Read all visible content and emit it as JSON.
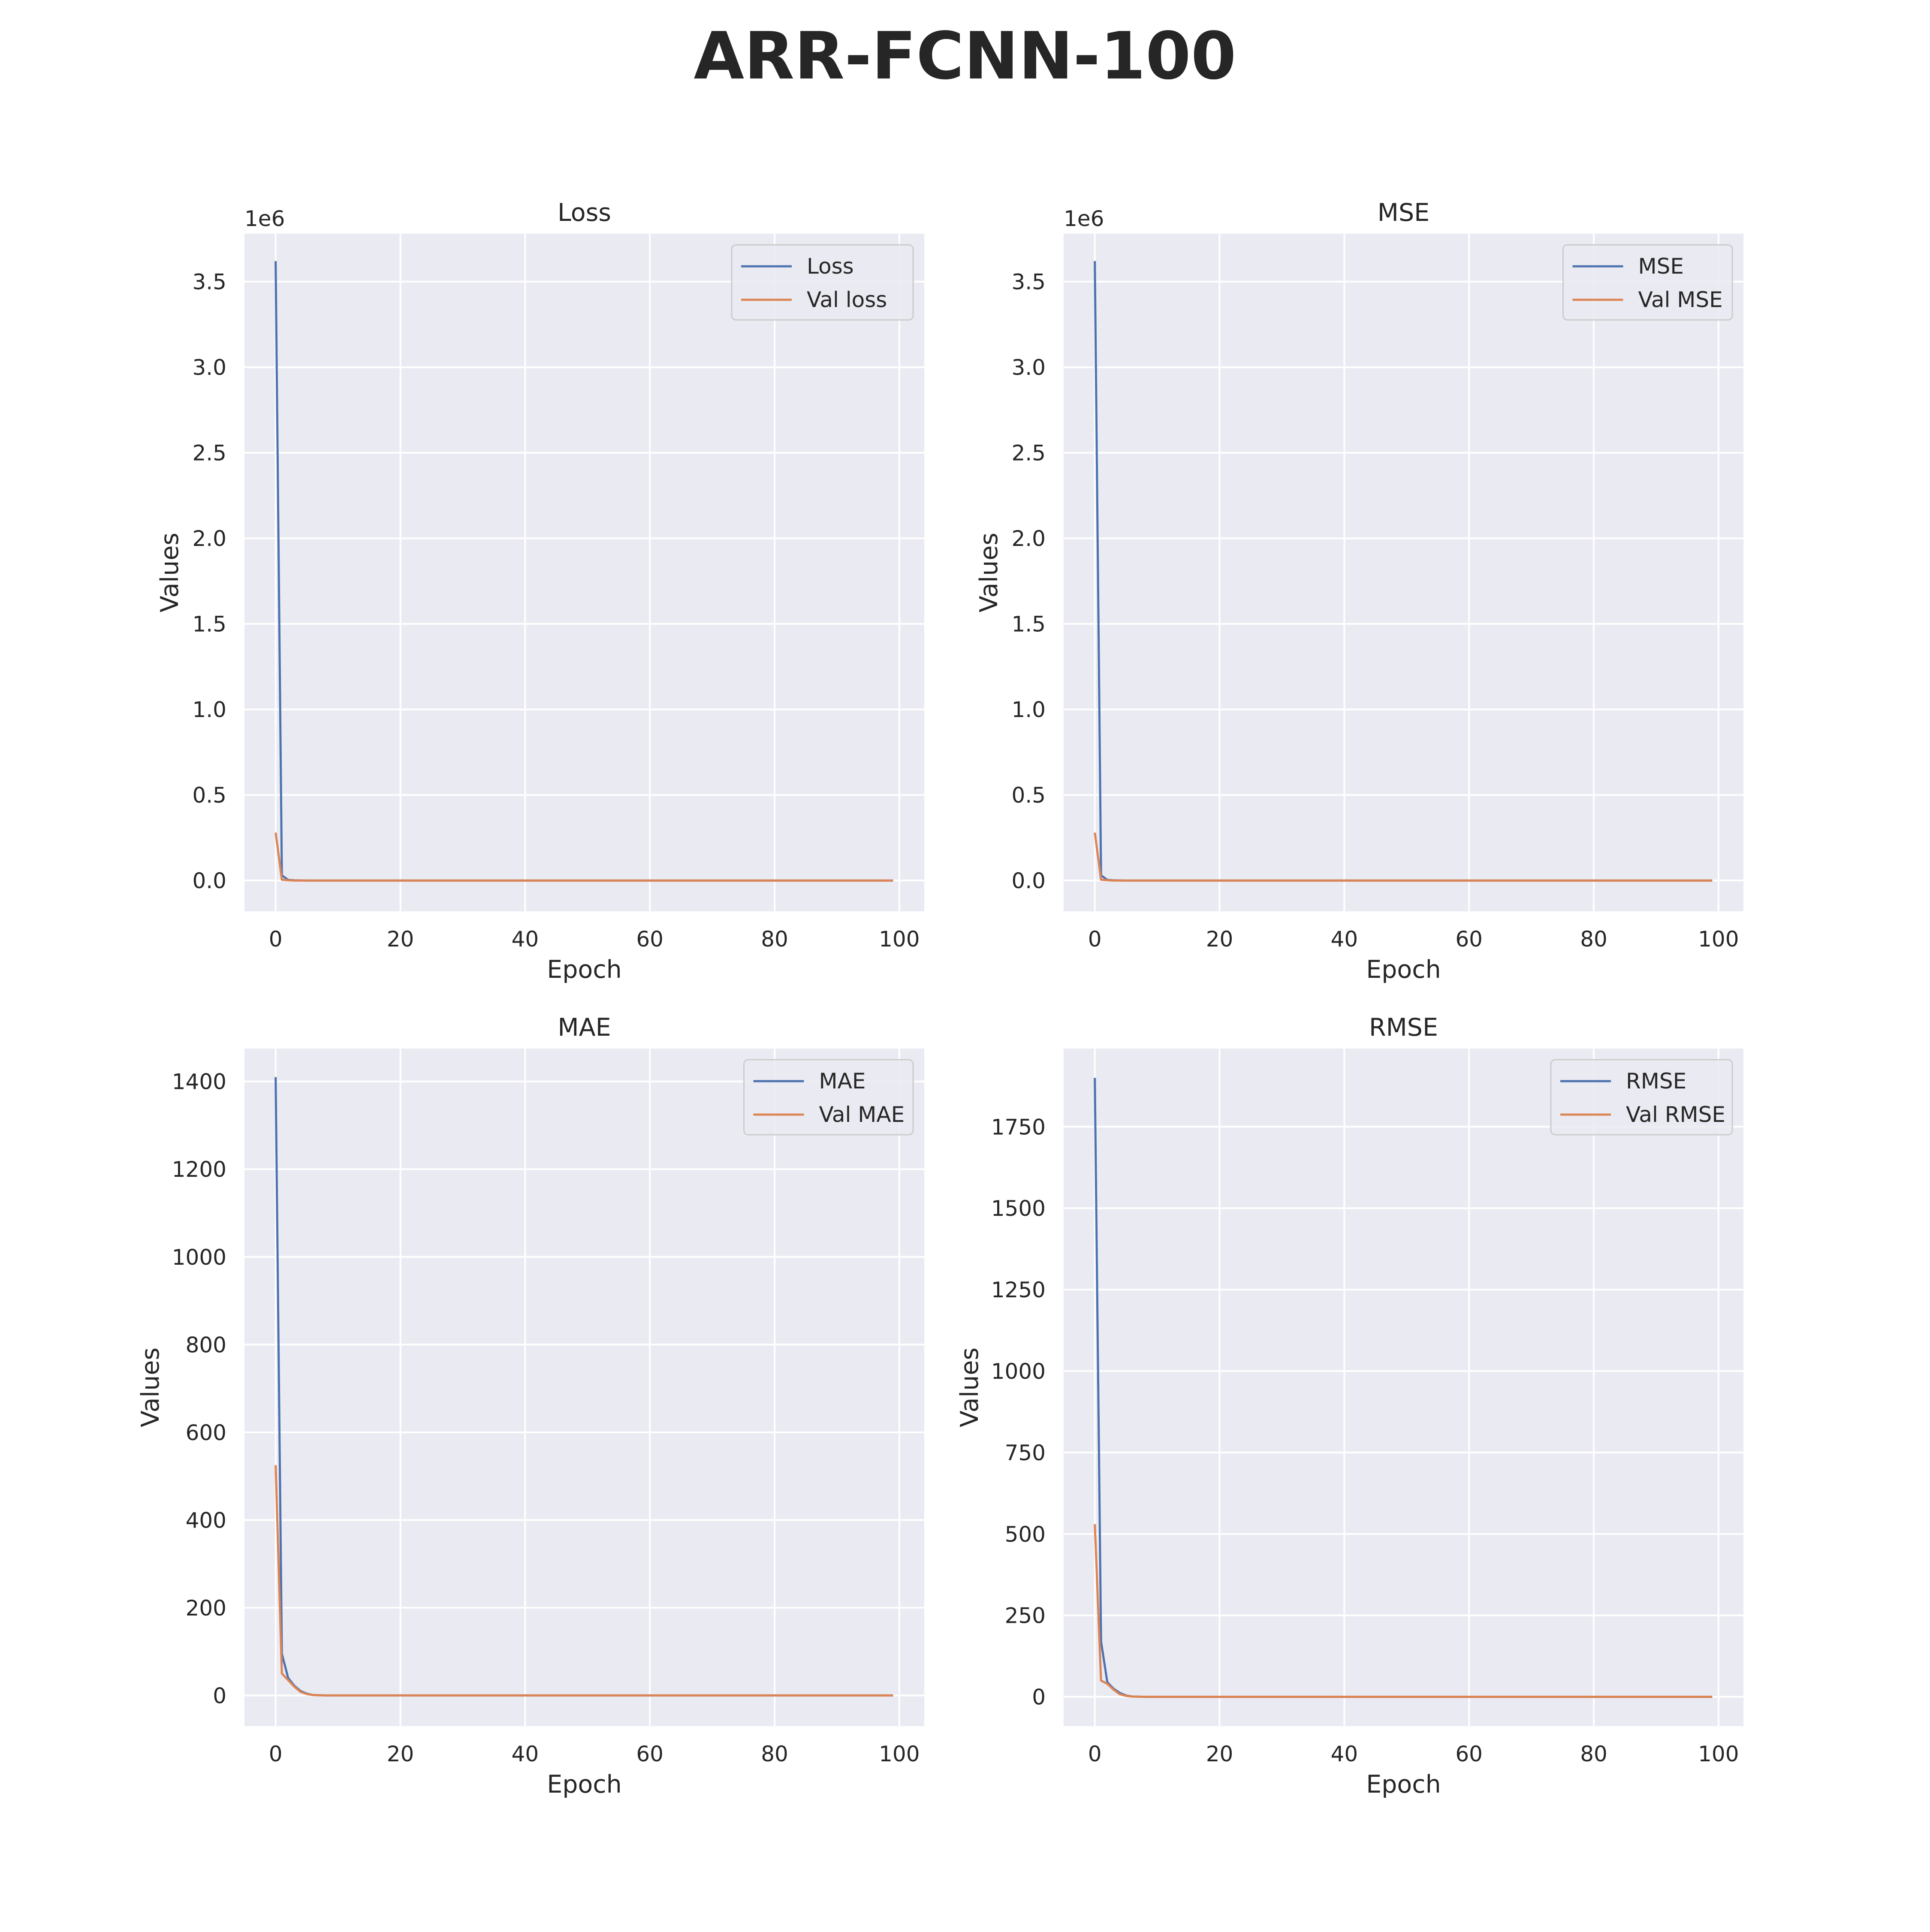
{
  "figure": {
    "title": "ARR-FCNN-100"
  },
  "colors": {
    "train": "#4C72B0",
    "val": "#DD8452",
    "axes_bg": "#EAEAF2",
    "grid": "#FFFFFF"
  },
  "chart_data": [
    {
      "type": "line",
      "title": "Loss",
      "xlabel": "Epoch",
      "ylabel": "Values",
      "offset_text": "1e6",
      "xlim": [
        -5,
        104
      ],
      "ylim": [
        -0.18,
        3.78
      ],
      "xticks": [
        0,
        20,
        40,
        60,
        80,
        100
      ],
      "xtick_labels": [
        "0",
        "20",
        "40",
        "60",
        "80",
        "100"
      ],
      "yticks": [
        0,
        0.5,
        1.0,
        1.5,
        2.0,
        2.5,
        3.0,
        3.5
      ],
      "ytick_labels": [
        "0.0",
        "0.5",
        "1.0",
        "1.5",
        "2.0",
        "2.5",
        "3.0",
        "3.5"
      ],
      "grid": true,
      "legend_position": "top-right",
      "series": [
        {
          "name": "Loss",
          "role": "train",
          "points": [
            [
              0,
              3.62
            ],
            [
              1,
              0.03
            ],
            [
              2,
              0.004
            ],
            [
              3,
              0.001
            ],
            [
              5,
              0.0
            ],
            [
              99,
              0.0
            ]
          ]
        },
        {
          "name": "Val loss",
          "role": "val",
          "points": [
            [
              0,
              0.28
            ],
            [
              1,
              0.005
            ],
            [
              2,
              0.002
            ],
            [
              3,
              0.0
            ],
            [
              99,
              0.0
            ]
          ]
        }
      ]
    },
    {
      "type": "line",
      "title": "MSE",
      "xlabel": "Epoch",
      "ylabel": "Values",
      "offset_text": "1e6",
      "xlim": [
        -5,
        104
      ],
      "ylim": [
        -0.18,
        3.78
      ],
      "xticks": [
        0,
        20,
        40,
        60,
        80,
        100
      ],
      "xtick_labels": [
        "0",
        "20",
        "40",
        "60",
        "80",
        "100"
      ],
      "yticks": [
        0,
        0.5,
        1.0,
        1.5,
        2.0,
        2.5,
        3.0,
        3.5
      ],
      "ytick_labels": [
        "0.0",
        "0.5",
        "1.0",
        "1.5",
        "2.0",
        "2.5",
        "3.0",
        "3.5"
      ],
      "grid": true,
      "legend_position": "top-right",
      "series": [
        {
          "name": "MSE",
          "role": "train",
          "points": [
            [
              0,
              3.62
            ],
            [
              1,
              0.03
            ],
            [
              2,
              0.004
            ],
            [
              3,
              0.001
            ],
            [
              5,
              0.0
            ],
            [
              99,
              0.0
            ]
          ]
        },
        {
          "name": "Val MSE",
          "role": "val",
          "points": [
            [
              0,
              0.28
            ],
            [
              1,
              0.005
            ],
            [
              2,
              0.002
            ],
            [
              3,
              0.0
            ],
            [
              99,
              0.0
            ]
          ]
        }
      ]
    },
    {
      "type": "line",
      "title": "MAE",
      "xlabel": "Epoch",
      "ylabel": "Values",
      "offset_text": "",
      "xlim": [
        -5,
        104
      ],
      "ylim": [
        -70,
        1475
      ],
      "xticks": [
        0,
        20,
        40,
        60,
        80,
        100
      ],
      "xtick_labels": [
        "0",
        "20",
        "40",
        "60",
        "80",
        "100"
      ],
      "yticks": [
        0,
        200,
        400,
        600,
        800,
        1000,
        1200,
        1400
      ],
      "ytick_labels": [
        "0",
        "200",
        "400",
        "600",
        "800",
        "1000",
        "1200",
        "1400"
      ],
      "grid": true,
      "legend_position": "top-right",
      "series": [
        {
          "name": "MAE",
          "role": "train",
          "points": [
            [
              0,
              1410
            ],
            [
              1,
              95
            ],
            [
              2,
              40
            ],
            [
              3,
              22
            ],
            [
              4,
              10
            ],
            [
              5,
              4
            ],
            [
              6,
              1
            ],
            [
              8,
              0
            ],
            [
              99,
              0
            ]
          ]
        },
        {
          "name": "Val MAE",
          "role": "val",
          "points": [
            [
              0,
              525
            ],
            [
              1,
              50
            ],
            [
              2,
              35
            ],
            [
              3,
              20
            ],
            [
              4,
              8
            ],
            [
              5,
              3
            ],
            [
              6,
              1
            ],
            [
              8,
              0
            ],
            [
              99,
              0
            ]
          ]
        }
      ]
    },
    {
      "type": "line",
      "title": "RMSE",
      "xlabel": "Epoch",
      "ylabel": "Values",
      "offset_text": "",
      "xlim": [
        -5,
        104
      ],
      "ylim": [
        -90,
        1990
      ],
      "xticks": [
        0,
        20,
        40,
        60,
        80,
        100
      ],
      "xtick_labels": [
        "0",
        "20",
        "40",
        "60",
        "80",
        "100"
      ],
      "yticks": [
        0,
        250,
        500,
        750,
        1000,
        1250,
        1500,
        1750
      ],
      "ytick_labels": [
        "0",
        "250",
        "500",
        "750",
        "1000",
        "1250",
        "1500",
        "1750"
      ],
      "grid": true,
      "legend_position": "top-right",
      "series": [
        {
          "name": "RMSE",
          "role": "train",
          "points": [
            [
              0,
              1900
            ],
            [
              1,
              170
            ],
            [
              2,
              45
            ],
            [
              3,
              25
            ],
            [
              4,
              12
            ],
            [
              5,
              4
            ],
            [
              6,
              1
            ],
            [
              8,
              0
            ],
            [
              99,
              0
            ]
          ]
        },
        {
          "name": "Val RMSE",
          "role": "val",
          "points": [
            [
              0,
              530
            ],
            [
              1,
              50
            ],
            [
              2,
              40
            ],
            [
              3,
              22
            ],
            [
              4,
              8
            ],
            [
              5,
              3
            ],
            [
              6,
              1
            ],
            [
              8,
              0
            ],
            [
              99,
              0
            ]
          ]
        }
      ]
    }
  ]
}
